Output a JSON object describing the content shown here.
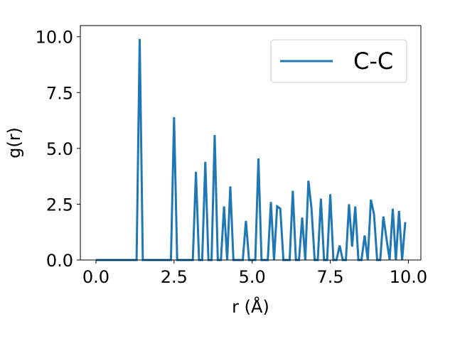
{
  "chart_data": {
    "type": "line",
    "title": "",
    "xlabel": "r (Å)",
    "ylabel": "g(r)",
    "xlim": [
      -0.5,
      10.4
    ],
    "ylim": [
      0,
      10.5
    ],
    "xticks": [
      0.0,
      2.5,
      5.0,
      7.5,
      10.0
    ],
    "xtick_labels": [
      "0.0",
      "2.5",
      "5.0",
      "7.5",
      "10.0"
    ],
    "yticks": [
      0.0,
      2.5,
      5.0,
      7.5,
      10.0
    ],
    "ytick_labels": [
      "0.0",
      "2.5",
      "5.0",
      "7.5",
      "10.0"
    ],
    "grid": false,
    "legend_position": "top-right",
    "series": [
      {
        "name": "C-C",
        "color": "#1f77b4",
        "x": [
          0.0,
          0.1,
          0.2,
          0.3,
          0.4,
          0.5,
          0.6,
          0.7,
          0.8,
          0.9,
          1.0,
          1.1,
          1.2,
          1.3,
          1.4,
          1.5,
          1.6,
          1.7,
          1.8,
          1.9,
          2.0,
          2.1,
          2.2,
          2.3,
          2.4,
          2.5,
          2.6,
          2.7,
          2.8,
          2.9,
          3.0,
          3.1,
          3.2,
          3.3,
          3.4,
          3.5,
          3.6,
          3.7,
          3.8,
          3.9,
          4.0,
          4.1,
          4.2,
          4.3,
          4.4,
          4.5,
          4.6,
          4.7,
          4.8,
          4.9,
          5.0,
          5.1,
          5.2,
          5.3,
          5.4,
          5.5,
          5.6,
          5.7,
          5.8,
          5.9,
          6.0,
          6.1,
          6.2,
          6.3,
          6.4,
          6.5,
          6.6,
          6.7,
          6.8,
          6.9,
          7.0,
          7.1,
          7.2,
          7.3,
          7.4,
          7.5,
          7.6,
          7.7,
          7.8,
          7.9,
          8.0,
          8.1,
          8.2,
          8.3,
          8.4,
          8.5,
          8.6,
          8.7,
          8.8,
          8.9,
          9.0,
          9.1,
          9.2,
          9.3,
          9.4,
          9.5,
          9.6,
          9.7,
          9.8,
          9.9
        ],
        "y": [
          0,
          0,
          0,
          0,
          0,
          0,
          0,
          0,
          0,
          0,
          0,
          0,
          0,
          0,
          9.9,
          0,
          0,
          0,
          0,
          0,
          0,
          0,
          0,
          0,
          0,
          6.4,
          0,
          0,
          0,
          0,
          0,
          0,
          3.95,
          0,
          0,
          4.4,
          0,
          0,
          5.6,
          0,
          0,
          2.4,
          0,
          3.3,
          0,
          0,
          0,
          0,
          1.75,
          0,
          0,
          0,
          4.55,
          0,
          0,
          0,
          2.6,
          0,
          2.4,
          2.3,
          0,
          0,
          0,
          3.1,
          0,
          0,
          1.9,
          0,
          3.55,
          2.3,
          0,
          0,
          2.75,
          0,
          0,
          2.95,
          0,
          0,
          0.65,
          0,
          0,
          2.5,
          0.6,
          2.4,
          0,
          0,
          1.1,
          0,
          2.7,
          2.05,
          0,
          0,
          1.95,
          0.95,
          0,
          2.3,
          0,
          2.2,
          0,
          1.7
        ]
      }
    ]
  }
}
